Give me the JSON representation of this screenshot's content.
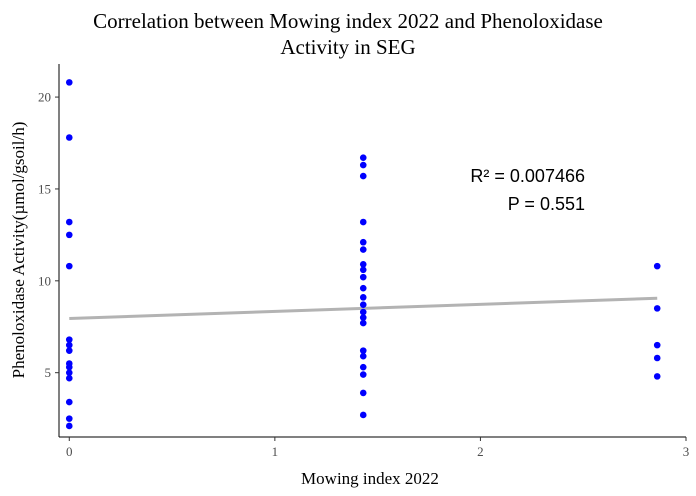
{
  "chart_data": {
    "type": "scatter",
    "title": "Correlation between Mowing index 2022 and Phenoloxidase",
    "title_line2": "Activity in SEG",
    "xlabel": "Mowing index 2022",
    "ylabel": "Phenoloxidase Activity(µmol/gsoil/h)",
    "xlim": [
      -0.05,
      3.0
    ],
    "ylim": [
      1.5,
      21.8
    ],
    "x_ticks": [
      0,
      1,
      2,
      3
    ],
    "y_ticks": [
      5,
      10,
      15,
      20
    ],
    "grid": false,
    "point_color": "#0000ff",
    "line_color": "#b3b3b3",
    "points": [
      {
        "x": 0,
        "y": 20.8
      },
      {
        "x": 0,
        "y": 17.8
      },
      {
        "x": 0,
        "y": 13.2
      },
      {
        "x": 0,
        "y": 12.5
      },
      {
        "x": 0,
        "y": 10.8
      },
      {
        "x": 0,
        "y": 6.8
      },
      {
        "x": 0,
        "y": 6.5
      },
      {
        "x": 0,
        "y": 6.2
      },
      {
        "x": 0,
        "y": 5.5
      },
      {
        "x": 0,
        "y": 5.3
      },
      {
        "x": 0,
        "y": 5.0
      },
      {
        "x": 0,
        "y": 4.7
      },
      {
        "x": 0,
        "y": 3.4
      },
      {
        "x": 0,
        "y": 2.5
      },
      {
        "x": 0,
        "y": 2.1
      },
      {
        "x": 1.43,
        "y": 16.7
      },
      {
        "x": 1.43,
        "y": 16.3
      },
      {
        "x": 1.43,
        "y": 15.7
      },
      {
        "x": 1.43,
        "y": 13.2
      },
      {
        "x": 1.43,
        "y": 12.1
      },
      {
        "x": 1.43,
        "y": 11.7
      },
      {
        "x": 1.43,
        "y": 10.9
      },
      {
        "x": 1.43,
        "y": 10.6
      },
      {
        "x": 1.43,
        "y": 10.2
      },
      {
        "x": 1.43,
        "y": 9.6
      },
      {
        "x": 1.43,
        "y": 9.1
      },
      {
        "x": 1.43,
        "y": 8.7
      },
      {
        "x": 1.43,
        "y": 8.3
      },
      {
        "x": 1.43,
        "y": 8.0
      },
      {
        "x": 1.43,
        "y": 7.7
      },
      {
        "x": 1.43,
        "y": 6.2
      },
      {
        "x": 1.43,
        "y": 5.9
      },
      {
        "x": 1.43,
        "y": 5.3
      },
      {
        "x": 1.43,
        "y": 4.9
      },
      {
        "x": 1.43,
        "y": 3.9
      },
      {
        "x": 1.43,
        "y": 2.7
      },
      {
        "x": 2.86,
        "y": 10.8
      },
      {
        "x": 2.86,
        "y": 8.5
      },
      {
        "x": 2.86,
        "y": 6.5
      },
      {
        "x": 2.86,
        "y": 5.8
      },
      {
        "x": 2.86,
        "y": 4.8
      }
    ],
    "regression": {
      "x": [
        0,
        2.86
      ],
      "y": [
        7.95,
        9.05
      ]
    },
    "annotations": {
      "r2": "R² = 0.007466",
      "p": "P = 0.551"
    }
  }
}
